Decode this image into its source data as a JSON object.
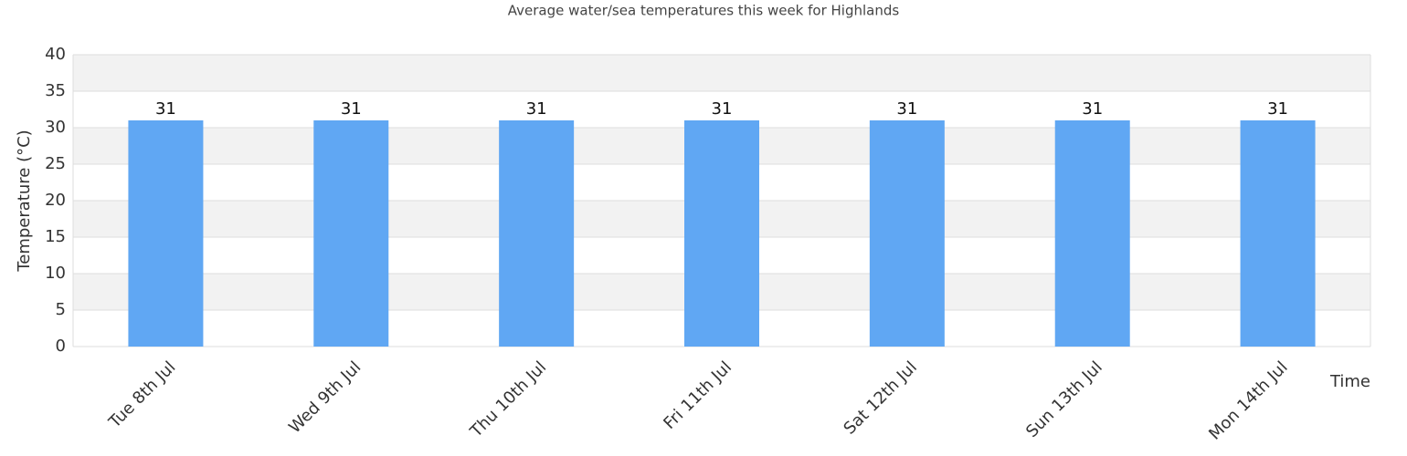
{
  "chart_data": {
    "type": "bar",
    "title": "Average water/sea temperatures this week for Highlands",
    "x_label": "Time",
    "y_label": "Temperature (°C)",
    "categories": [
      "Tue 8th Jul",
      "Wed 9th Jul",
      "Thu 10th Jul",
      "Fri 11th Jul",
      "Sat 12th Jul",
      "Sun 13th Jul",
      "Mon 14th Jul"
    ],
    "values": [
      31,
      31,
      31,
      31,
      31,
      31,
      31
    ],
    "color": "#60a7f3",
    "ylim": [
      0,
      40
    ],
    "yticks": [
      0,
      5,
      10,
      15,
      20,
      25,
      30,
      35,
      40
    ],
    "grid": true
  }
}
